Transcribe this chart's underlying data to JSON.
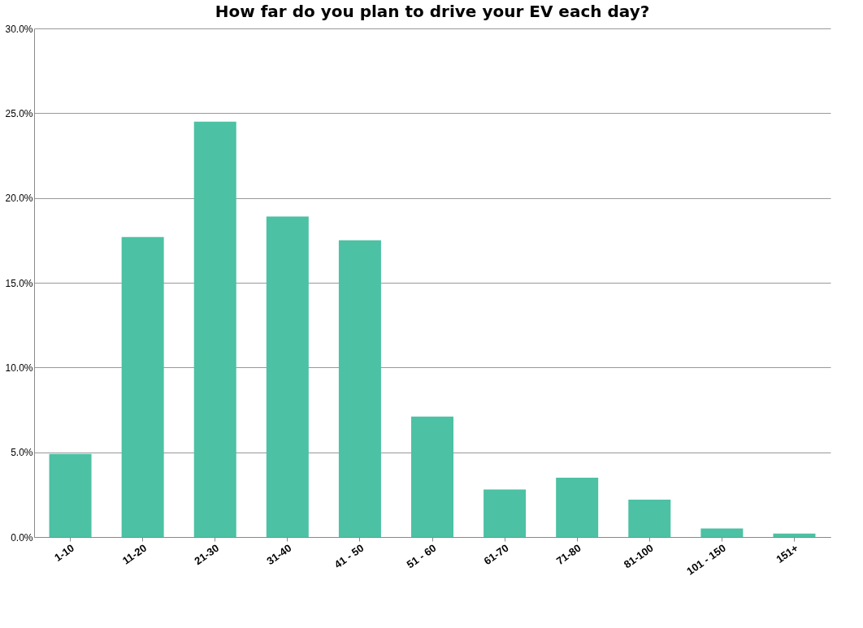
{
  "chart_data": {
    "type": "bar",
    "title": "How far do you plan to drive your EV each day?",
    "categories": [
      "1-10",
      "11-20",
      "21-30",
      "31-40",
      "41 - 50",
      "51 - 60",
      "61-70",
      "71-80",
      "81-100",
      "101 - 150",
      "151+"
    ],
    "values": [
      4.9,
      17.7,
      24.5,
      18.9,
      17.5,
      7.1,
      2.8,
      3.5,
      2.2,
      0.5,
      0.2
    ],
    "color": "#4cc1a4",
    "ylim": [
      0,
      30
    ],
    "yticks": [
      {
        "value": 0,
        "label": "0.0%"
      },
      {
        "value": 5,
        "label": "5.0%"
      },
      {
        "value": 10,
        "label": "10.0%"
      },
      {
        "value": 15,
        "label": "15.0%"
      },
      {
        "value": 20,
        "label": "20.0%"
      },
      {
        "value": 25,
        "label": "25.0%"
      },
      {
        "value": 30,
        "label": "30.0%"
      }
    ],
    "grid": "y"
  }
}
